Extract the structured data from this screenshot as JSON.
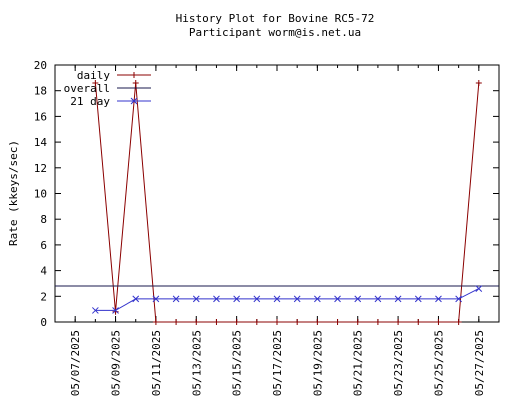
{
  "chart_data": {
    "type": "line",
    "title": "History Plot for Bovine RC5-72",
    "subtitle": "Participant worm@is.net.ua",
    "xlabel": "",
    "ylabel": "Rate (kkeys/sec)",
    "ylim": [
      0,
      20
    ],
    "yticks": [
      0,
      2,
      4,
      6,
      8,
      10,
      12,
      14,
      16,
      18,
      20
    ],
    "xlim": [
      "2025-05-06",
      "2025-05-28"
    ],
    "xticks": [
      {
        "date": "2025-05-07",
        "label": "05/07/2025"
      },
      {
        "date": "2025-05-09",
        "label": "05/09/2025"
      },
      {
        "date": "2025-05-11",
        "label": "05/11/2025"
      },
      {
        "date": "2025-05-13",
        "label": "05/13/2025"
      },
      {
        "date": "2025-05-15",
        "label": "05/15/2025"
      },
      {
        "date": "2025-05-17",
        "label": "05/17/2025"
      },
      {
        "date": "2025-05-19",
        "label": "05/19/2025"
      },
      {
        "date": "2025-05-21",
        "label": "05/21/2025"
      },
      {
        "date": "2025-05-23",
        "label": "05/23/2025"
      },
      {
        "date": "2025-05-25",
        "label": "05/25/2025"
      },
      {
        "date": "2025-05-27",
        "label": "05/27/2025"
      }
    ],
    "grid": false,
    "legend_position": "top-left",
    "series": [
      {
        "name": "daily",
        "color": "#8b0000",
        "marker": "plus",
        "x": [
          "2025-05-08",
          "2025-05-09",
          "2025-05-10",
          "2025-05-11",
          "2025-05-12",
          "2025-05-13",
          "2025-05-14",
          "2025-05-15",
          "2025-05-16",
          "2025-05-17",
          "2025-05-18",
          "2025-05-19",
          "2025-05-20",
          "2025-05-21",
          "2025-05-22",
          "2025-05-23",
          "2025-05-24",
          "2025-05-25",
          "2025-05-26",
          "2025-05-27"
        ],
        "values": [
          18.6,
          0.8,
          18.6,
          0,
          0,
          0,
          0,
          0,
          0,
          0,
          0,
          0,
          0,
          0,
          0,
          0,
          0,
          0,
          0,
          18.6
        ]
      },
      {
        "name": "overall",
        "color": "#1a1a4d",
        "marker": "none",
        "x": [
          "2025-05-06",
          "2025-05-28"
        ],
        "values": [
          2.8,
          2.8
        ]
      },
      {
        "name": "21 day",
        "color": "#3333cc",
        "marker": "x",
        "x": [
          "2025-05-08",
          "2025-05-09",
          "2025-05-10",
          "2025-05-11",
          "2025-05-12",
          "2025-05-13",
          "2025-05-14",
          "2025-05-15",
          "2025-05-16",
          "2025-05-17",
          "2025-05-18",
          "2025-05-19",
          "2025-05-20",
          "2025-05-21",
          "2025-05-22",
          "2025-05-23",
          "2025-05-24",
          "2025-05-25",
          "2025-05-26",
          "2025-05-27"
        ],
        "values": [
          0.9,
          0.9,
          1.8,
          1.8,
          1.8,
          1.8,
          1.8,
          1.8,
          1.8,
          1.8,
          1.8,
          1.8,
          1.8,
          1.8,
          1.8,
          1.8,
          1.8,
          1.8,
          1.8,
          2.6
        ]
      }
    ]
  }
}
